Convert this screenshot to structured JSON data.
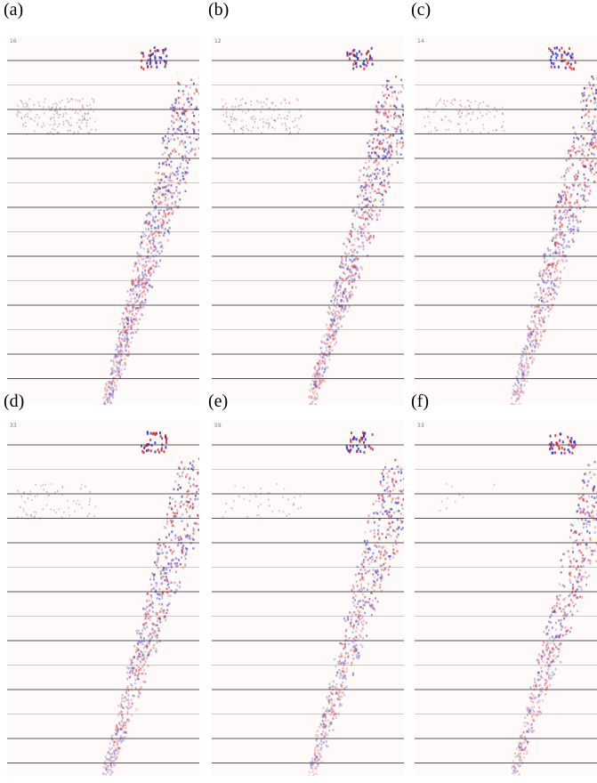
{
  "panels": [
    {
      "label": "(a)",
      "tag": "16"
    },
    {
      "label": "(b)",
      "tag": "12"
    },
    {
      "label": "(c)",
      "tag": "14"
    },
    {
      "label": "(d)",
      "tag": "33"
    },
    {
      "label": "(e)",
      "tag": "59"
    },
    {
      "label": "(f)",
      "tag": "33"
    }
  ]
}
